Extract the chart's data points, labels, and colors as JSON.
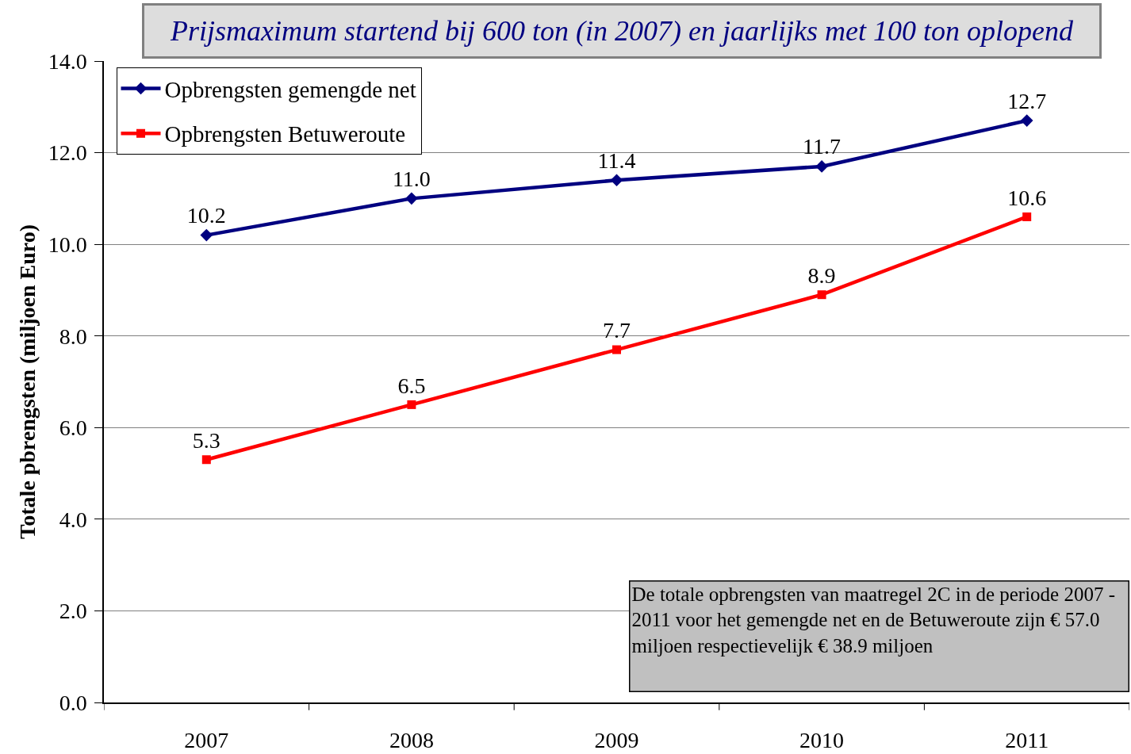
{
  "chart_data": {
    "type": "line",
    "title": "Prijsmaximum startend bij 600 ton (in 2007) en jaarlijks met 100 ton oplopend",
    "ylabel": "Totale pbrengsten (miljoen Euro)",
    "categories": [
      "2007",
      "2008",
      "2009",
      "2010",
      "2011"
    ],
    "series": [
      {
        "name": "Opbrengsten gemengde net",
        "color": "#000080",
        "marker": "diamond",
        "values": [
          10.2,
          11.0,
          11.4,
          11.7,
          12.7
        ],
        "value_labels": [
          "10.2",
          "11.0",
          "11.4",
          "11.7",
          "12.7"
        ]
      },
      {
        "name": "Opbrengsten Betuweroute",
        "color": "#ff0000",
        "marker": "square",
        "values": [
          5.3,
          6.5,
          7.7,
          8.9,
          10.6
        ],
        "value_labels": [
          "5.3",
          "6.5",
          "7.7",
          "8.9",
          "10.6"
        ]
      }
    ],
    "ylim": [
      0.0,
      14.0
    ],
    "yticks": [
      {
        "value": 0,
        "label": "0.0"
      },
      {
        "value": 2,
        "label": "2.0"
      },
      {
        "value": 4,
        "label": "4.0"
      },
      {
        "value": 6,
        "label": "6.0"
      },
      {
        "value": 8,
        "label": "8.0"
      },
      {
        "value": 10,
        "label": "10.0"
      },
      {
        "value": 12,
        "label": "12.0"
      },
      {
        "value": 14,
        "label": "14.0"
      }
    ],
    "grid": "y",
    "legend": "top left",
    "line_style": "solid",
    "annotations": [
      "De totale opbrengsten van maatregel 2C in de periode 2007 - 2011 voor het gemengde net en de Betuweroute zijn € 57.0 miljoen respectievelijk € 38.9 miljoen"
    ]
  }
}
